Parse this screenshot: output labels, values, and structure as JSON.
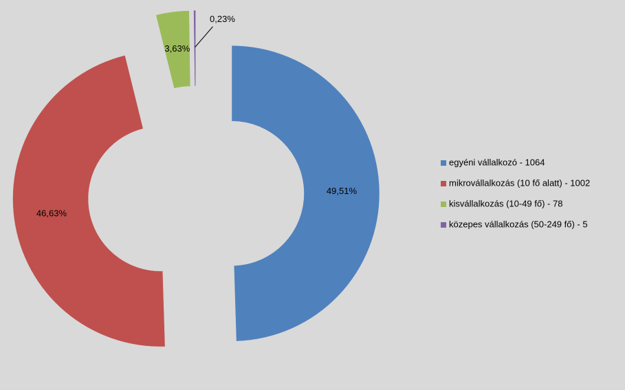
{
  "chart_data": {
    "type": "donut",
    "categories": [
      "egyéni vállalkozó - 1064",
      "mikrovállalkozás (10 fő alatt) - 1002",
      "kisvállalkozás (10-49 fő) - 78",
      "közepes vállalkozás (50-249 fő) - 5"
    ],
    "values": [
      49.51,
      46.63,
      3.63,
      0.23
    ],
    "value_labels": [
      "49,51%",
      "46,63%",
      "3,63%",
      "0,23%"
    ],
    "colors": [
      "#4f81bd",
      "#c0504d",
      "#9bbb59",
      "#8064a2"
    ],
    "legend": "right"
  }
}
